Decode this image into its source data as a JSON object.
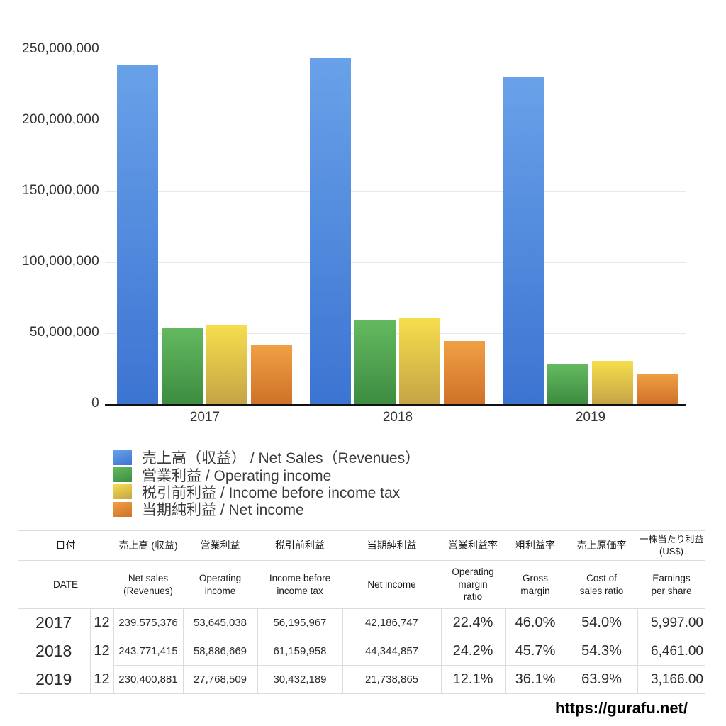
{
  "chart_data": {
    "type": "bar",
    "title": "",
    "categories": [
      "2017",
      "2018",
      "2019"
    ],
    "series": [
      {
        "key": "net-sales",
        "name": "売上高（収益） / Net Sales（Revenues）",
        "color_top": "#69a1e9",
        "color_bottom": "#3c74d2",
        "values": [
          239575376,
          243771415,
          230400881
        ]
      },
      {
        "key": "operating-income",
        "name": "営業利益 / Operating income",
        "color_top": "#64b95f",
        "color_bottom": "#3d8c41",
        "values": [
          53645038,
          58886669,
          27768509
        ]
      },
      {
        "key": "income-before-income-tax",
        "name": "税引前利益 / Income before income tax",
        "color_top": "#f6de4d",
        "color_bottom": "#c5a446",
        "values": [
          56195967,
          61159958,
          30432189
        ]
      },
      {
        "key": "net-income",
        "name": "当期純利益 / Net income",
        "color_top": "#f0a044",
        "color_bottom": "#cf7129",
        "values": [
          42186747,
          44344857,
          21738865
        ]
      }
    ],
    "xlabel": "",
    "ylabel": "",
    "ylim": [
      0,
      250000000
    ],
    "yticks": [
      0,
      50000000,
      100000000,
      150000000,
      200000000,
      250000000
    ],
    "ytick_labels": [
      "0",
      "50,000,000",
      "100,000,000",
      "150,000,000",
      "200,000,000",
      "250,000,000"
    ],
    "grid": true,
    "legend_position": "bottom-left"
  },
  "table": {
    "header_jp": [
      "日付",
      "売上高 (収益)",
      "営業利益",
      "税引前利益",
      "当期純利益",
      "営業利益率",
      "粗利益率",
      "売上原価率",
      "一株当たり利益\n(US$)"
    ],
    "header_en": [
      "DATE",
      "Net sales\n(Revenues)",
      "Operating\nincome",
      "Income before\nincome tax",
      "Net income",
      "Operating\nmargin\nratio",
      "Gross\nmargin",
      "Cost of\nsales ratio",
      "Earnings\nper share"
    ],
    "rows": [
      [
        "2017",
        "12",
        "239,575,376",
        "53,645,038",
        "56,195,967",
        "42,186,747",
        "22.4%",
        "46.0%",
        "54.0%",
        "5,997.00"
      ],
      [
        "2018",
        "12",
        "243,771,415",
        "58,886,669",
        "61,159,958",
        "44,344,857",
        "24.2%",
        "45.7%",
        "54.3%",
        "6,461.00"
      ],
      [
        "2019",
        "12",
        "230,400,881",
        "27,768,509",
        "30,432,189",
        "21,738,865",
        "12.1%",
        "36.1%",
        "63.9%",
        "3,166.00"
      ]
    ]
  },
  "footer": {
    "url": "https://gurafu.net/"
  }
}
